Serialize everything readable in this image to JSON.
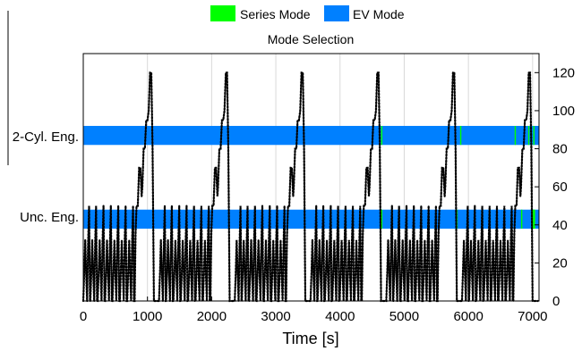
{
  "chart_data": {
    "type": "line",
    "title": "Mode Selection",
    "xlabel": "Time [s]",
    "ylabel": "",
    "xlim": [
      0,
      7100
    ],
    "ylim": [
      0,
      130
    ],
    "x_ticks": [
      0,
      1000,
      2000,
      3000,
      4000,
      5000,
      6000,
      7000
    ],
    "y_ticks": [
      0,
      20,
      40,
      60,
      80,
      100,
      120
    ],
    "y_axis_side": "right",
    "grid": "vertical",
    "legend": {
      "placement": "top",
      "entries": [
        {
          "name": "Series Mode",
          "color": "#00ff00"
        },
        {
          "name": "EV Mode",
          "color": "#0080ff"
        }
      ]
    },
    "categories": [
      {
        "label": "2-Cyl. Eng.",
        "y_low": 82,
        "y_high": 92
      },
      {
        "label": "Unc. Eng.",
        "y_low": 38,
        "y_high": 48
      }
    ],
    "mode_bands": [
      {
        "category": "2-Cyl. Eng.",
        "mode": "EV Mode",
        "x_start": 0,
        "x_end": 7100
      },
      {
        "category": "2-Cyl. Eng.",
        "mode": "Series Mode",
        "x_start": 4640,
        "x_end": 4660
      },
      {
        "category": "2-Cyl. Eng.",
        "mode": "Series Mode",
        "x_start": 5870,
        "x_end": 5890
      },
      {
        "category": "2-Cyl. Eng.",
        "mode": "Series Mode",
        "x_start": 6720,
        "x_end": 6740
      },
      {
        "category": "2-Cyl. Eng.",
        "mode": "Series Mode",
        "x_start": 6930,
        "x_end": 6950
      },
      {
        "category": "2-Cyl. Eng.",
        "mode": "Series Mode",
        "x_start": 7010,
        "x_end": 7030
      },
      {
        "category": "Unc. Eng.",
        "mode": "EV Mode",
        "x_start": 0,
        "x_end": 7100
      },
      {
        "category": "Unc. Eng.",
        "mode": "Series Mode",
        "x_start": 4640,
        "x_end": 4660
      },
      {
        "category": "Unc. Eng.",
        "mode": "Series Mode",
        "x_start": 5810,
        "x_end": 5830
      },
      {
        "category": "Unc. Eng.",
        "mode": "Series Mode",
        "x_start": 6820,
        "x_end": 6840
      },
      {
        "category": "Unc. Eng.",
        "mode": "Series Mode",
        "x_start": 6990,
        "x_end": 7040
      }
    ],
    "series": [
      {
        "style": "dotted",
        "color": "#000000",
        "cycle_period": 1180,
        "cycle_start": 0,
        "cycles": 6,
        "points_one_cycle": {
          "x": [
            0,
            15,
            30,
            45,
            60,
            75,
            90,
            105,
            110,
            125,
            140,
            155,
            170,
            185,
            200,
            215,
            225,
            240,
            255,
            270,
            285,
            300,
            315,
            330,
            340,
            355,
            370,
            385,
            400,
            415,
            430,
            445,
            455,
            470,
            485,
            500,
            515,
            530,
            545,
            560,
            570,
            585,
            600,
            615,
            630,
            645,
            660,
            675,
            685,
            700,
            715,
            730,
            745,
            760,
            775,
            790,
            800,
            815,
            830,
            850,
            870,
            890,
            910,
            920,
            940,
            960,
            980,
            1000,
            1020,
            1040,
            1060,
            1080,
            1100,
            1120,
            1140,
            1160,
            1180
          ],
          "y": [
            0,
            15,
            32,
            15,
            0,
            30,
            50,
            0,
            0,
            15,
            32,
            15,
            0,
            30,
            50,
            0,
            0,
            15,
            32,
            15,
            0,
            30,
            50,
            0,
            0,
            15,
            32,
            15,
            0,
            30,
            50,
            0,
            0,
            15,
            32,
            15,
            0,
            30,
            50,
            0,
            0,
            15,
            32,
            15,
            0,
            30,
            50,
            0,
            0,
            15,
            32,
            15,
            0,
            30,
            50,
            0,
            0,
            35,
            50,
            50,
            70,
            70,
            55,
            60,
            80,
            80,
            95,
            95,
            100,
            120,
            120,
            80,
            0,
            0,
            0,
            0,
            0
          ]
        }
      }
    ]
  }
}
